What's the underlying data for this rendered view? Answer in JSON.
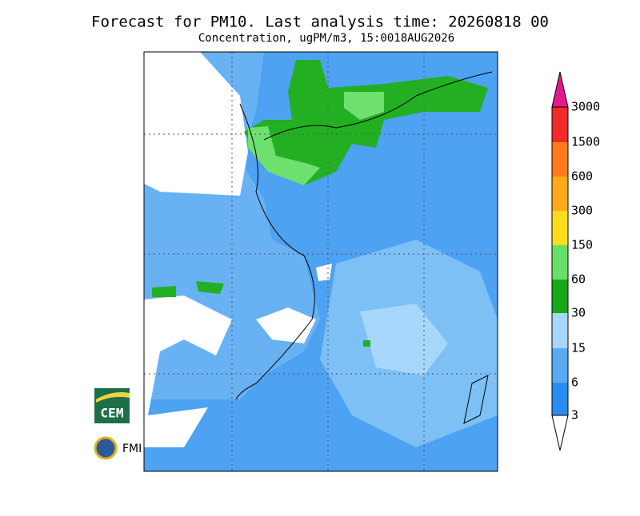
{
  "header": {
    "title": "Forecast for PM10. Last analysis time: 20260818 00",
    "subtitle": "Concentration, ugPM/m3, 15:0018AUG2026"
  },
  "colorbar": {
    "labels": [
      "3000",
      "1500",
      "600",
      "300",
      "150",
      "60",
      "30",
      "15",
      "6",
      "3"
    ]
  },
  "logos": {
    "cem": "CEM",
    "fmi": "FMI"
  }
}
